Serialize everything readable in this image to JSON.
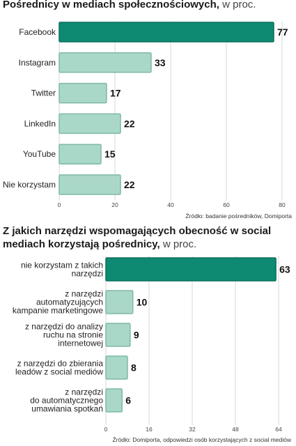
{
  "chart_data": [
    {
      "type": "bar",
      "orientation": "horizontal",
      "title": "Pośrednicy w mediach społecznościowych,",
      "unit_label": "w proc.",
      "categories": [
        "Facebook",
        "Instagram",
        "Twitter",
        "LinkedIn",
        "YouTube",
        "Nie korzystam"
      ],
      "values": [
        77,
        33,
        17,
        22,
        15,
        22
      ],
      "highlight_index": 0,
      "xlim": [
        0,
        80
      ],
      "xticks": [
        0,
        20,
        40,
        60,
        80
      ],
      "grid": true,
      "source": "Źródło: badanie pośredników, Domiporta"
    },
    {
      "type": "bar",
      "orientation": "horizontal",
      "title": "Z jakich narzędzi wspomagających obecność w social mediach korzystają pośrednicy,",
      "unit_label": "w proc.",
      "categories": [
        [
          "nie korzystam z takich",
          "narzędzi"
        ],
        [
          "z narzędzi",
          "automatyzujących",
          "kampanie marketingowe"
        ],
        [
          "z narzędzi do analizy",
          "ruchu na stronie",
          "internetowej"
        ],
        [
          "z narzędzi do zbierania",
          "leadów z social mediów"
        ],
        [
          "z narzędzi",
          "do automatycznego",
          "umawiania spotkań"
        ]
      ],
      "values": [
        63,
        10,
        9,
        8,
        6
      ],
      "highlight_index": 0,
      "xlim": [
        0,
        64
      ],
      "xticks": [
        0,
        16,
        32,
        48,
        64
      ],
      "grid": true,
      "source": "Źródło: Domiporta, odpowiedzi osób korzystających z social mediów"
    }
  ],
  "colors": {
    "highlight": "#0e8a72",
    "bar": "#a9d7c8",
    "bar_stroke": "#7fb9a7",
    "grid": "#bdbdbd"
  }
}
